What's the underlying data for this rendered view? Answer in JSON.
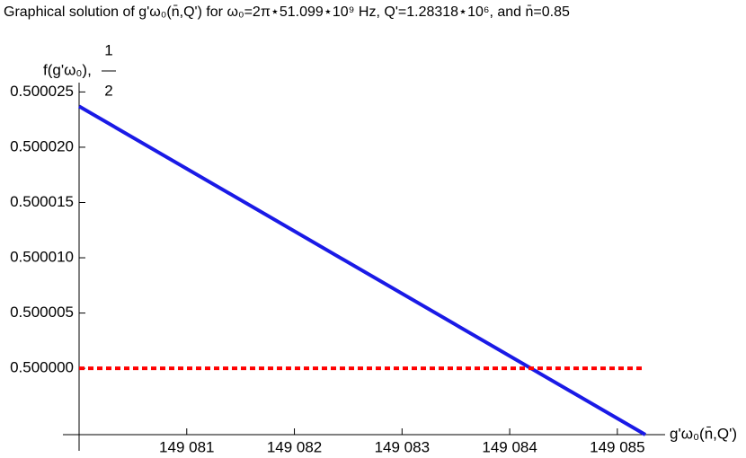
{
  "chart_data": {
    "type": "line",
    "title": "Graphical solution of g'ω₀(n̄,Q') for ω₀=2π⋆51.099⋆10⁹ Hz, Q'=1.28318⋆10⁶, and n̄=0.85",
    "ylabel": "f(g'ω₀),",
    "ylabel_fraction": [
      "1",
      "2"
    ],
    "xlabel": "g'ω₀(n̄,Q')",
    "x": [
      149080,
      149085.26
    ],
    "series": [
      {
        "color": "#1a1ae6",
        "values": [
          0.5000237,
          0.499994
        ]
      },
      {
        "color": "#ff0000",
        "dashed": true,
        "values": [
          0.5,
          0.5
        ]
      }
    ],
    "xlim": [
      149080,
      149085.26
    ],
    "ylim": [
      0.499994,
      0.5000256
    ],
    "xticks": [
      {
        "value": 149081,
        "label": "149 081"
      },
      {
        "value": 149082,
        "label": "149 082"
      },
      {
        "value": 149083,
        "label": "149 083"
      },
      {
        "value": 149084,
        "label": "149 084"
      },
      {
        "value": 149085,
        "label": "149 085"
      }
    ],
    "yticks": [
      {
        "value": 0.5,
        "label": "0.500000"
      },
      0.500005,
      {
        "value": 0.50001,
        "label": "0.500010"
      },
      0.500015,
      {
        "value": 0.50002,
        "label": "0.500020"
      },
      0.500025
    ]
  }
}
